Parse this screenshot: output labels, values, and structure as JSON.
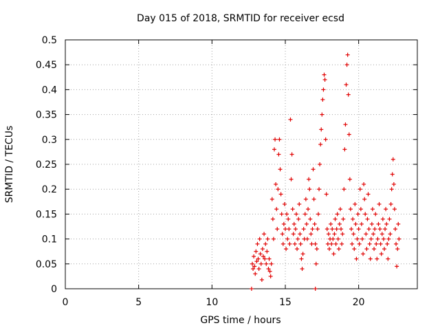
{
  "chart_data": {
    "type": "scatter",
    "title": "Day 015 of 2018, SRMTID for receiver ecsd",
    "xlabel": "GPS time / hours",
    "ylabel": "SRMTID / TECUs",
    "xlim": [
      0,
      24
    ],
    "ylim": [
      0,
      0.5
    ],
    "xticks": [
      0,
      5,
      10,
      15,
      20
    ],
    "yticks": [
      0,
      0.05,
      0.1,
      0.15,
      0.2,
      0.25,
      0.3,
      0.35,
      0.4,
      0.45,
      0.5
    ],
    "grid": true,
    "marker": "+",
    "color": "#e00000",
    "series": [
      {
        "name": "SRMTID",
        "points": [
          [
            12.75,
            0.05
          ],
          [
            12.8,
            0.04
          ],
          [
            12.85,
            0.065
          ],
          [
            12.9,
            0.045
          ],
          [
            12.95,
            0.03
          ],
          [
            13.0,
            0.075
          ],
          [
            13.05,
            0.055
          ],
          [
            13.1,
            0.09
          ],
          [
            13.15,
            0.06
          ],
          [
            13.2,
            0.04
          ],
          [
            13.25,
            0.1
          ],
          [
            13.3,
            0.07
          ],
          [
            13.35,
            0.05
          ],
          [
            13.4,
            0.018
          ],
          [
            13.45,
            0.08
          ],
          [
            13.5,
            0.065
          ],
          [
            13.55,
            0.11
          ],
          [
            13.6,
            0.06
          ],
          [
            13.65,
            0.09
          ],
          [
            13.7,
            0.05
          ],
          [
            13.75,
            0.075
          ],
          [
            13.8,
            0.1
          ],
          [
            13.85,
            0.04
          ],
          [
            13.9,
            0.06
          ],
          [
            13.95,
            0.035
          ],
          [
            14.0,
            0.025
          ],
          [
            14.05,
            0.05
          ],
          [
            14.1,
            0.18
          ],
          [
            14.15,
            0.14
          ],
          [
            14.2,
            0.1
          ],
          [
            14.25,
            0.28
          ],
          [
            14.3,
            0.3
          ],
          [
            14.35,
            0.21
          ],
          [
            14.4,
            0.16
          ],
          [
            14.45,
            0.12
          ],
          [
            14.5,
            0.2
          ],
          [
            14.55,
            0.27
          ],
          [
            14.6,
            0.3
          ],
          [
            14.65,
            0.24
          ],
          [
            14.7,
            0.19
          ],
          [
            14.75,
            0.15
          ],
          [
            14.8,
            0.11
          ],
          [
            14.85,
            0.09
          ],
          [
            14.9,
            0.13
          ],
          [
            14.95,
            0.17
          ],
          [
            15.0,
            0.12
          ],
          [
            15.05,
            0.08
          ],
          [
            15.1,
            0.15
          ],
          [
            15.15,
            0.1
          ],
          [
            15.2,
            0.14
          ],
          [
            15.25,
            0.12
          ],
          [
            15.3,
            0.09
          ],
          [
            15.35,
            0.34
          ],
          [
            15.4,
            0.22
          ],
          [
            15.45,
            0.27
          ],
          [
            15.5,
            0.16
          ],
          [
            15.55,
            0.11
          ],
          [
            15.6,
            0.13
          ],
          [
            15.65,
            0.09
          ],
          [
            15.7,
            0.12
          ],
          [
            15.75,
            0.15
          ],
          [
            15.8,
            0.08
          ],
          [
            15.85,
            0.1
          ],
          [
            15.9,
            0.14
          ],
          [
            15.95,
            0.17
          ],
          [
            16.0,
            0.11
          ],
          [
            16.05,
            0.09
          ],
          [
            16.1,
            0.06
          ],
          [
            16.15,
            0.04
          ],
          [
            16.2,
            0.07
          ],
          [
            16.25,
            0.12
          ],
          [
            16.3,
            0.1
          ],
          [
            16.35,
            0.15
          ],
          [
            16.4,
            0.18
          ],
          [
            16.45,
            0.13
          ],
          [
            16.5,
            0.1
          ],
          [
            16.55,
            0.16
          ],
          [
            16.6,
            0.22
          ],
          [
            16.65,
            0.2
          ],
          [
            16.7,
            0.14
          ],
          [
            16.75,
            0.11
          ],
          [
            16.8,
            0.09
          ],
          [
            16.85,
            0.12
          ],
          [
            16.9,
            0.24
          ],
          [
            16.95,
            0.18
          ],
          [
            17.0,
            0.13
          ],
          [
            17.05,
            0.09
          ],
          [
            17.1,
            0.05
          ],
          [
            17.15,
            0.08
          ],
          [
            17.2,
            0.12
          ],
          [
            17.25,
            0.15
          ],
          [
            17.3,
            0.2
          ],
          [
            17.35,
            0.25
          ],
          [
            17.4,
            0.29
          ],
          [
            17.45,
            0.32
          ],
          [
            17.5,
            0.35
          ],
          [
            17.55,
            0.38
          ],
          [
            17.6,
            0.4
          ],
          [
            17.65,
            0.43
          ],
          [
            17.7,
            0.42
          ],
          [
            17.75,
            0.3
          ],
          [
            17.8,
            0.19
          ],
          [
            17.85,
            0.12
          ],
          [
            17.9,
            0.09
          ],
          [
            17.95,
            0.11
          ],
          [
            18.0,
            0.08
          ],
          [
            18.05,
            0.1
          ],
          [
            18.1,
            0.13
          ],
          [
            18.15,
            0.09
          ],
          [
            18.2,
            0.12
          ],
          [
            18.25,
            0.1
          ],
          [
            18.3,
            0.07
          ],
          [
            18.35,
            0.11
          ],
          [
            18.4,
            0.14
          ],
          [
            18.45,
            0.09
          ],
          [
            18.5,
            0.12
          ],
          [
            18.55,
            0.15
          ],
          [
            18.6,
            0.1
          ],
          [
            18.65,
            0.08
          ],
          [
            18.7,
            0.13
          ],
          [
            18.75,
            0.16
          ],
          [
            18.8,
            0.12
          ],
          [
            18.85,
            0.09
          ],
          [
            18.9,
            0.11
          ],
          [
            18.95,
            0.14
          ],
          [
            19.0,
            0.2
          ],
          [
            19.05,
            0.28
          ],
          [
            19.1,
            0.33
          ],
          [
            19.15,
            0.41
          ],
          [
            19.2,
            0.45
          ],
          [
            19.25,
            0.47
          ],
          [
            19.3,
            0.39
          ],
          [
            19.35,
            0.31
          ],
          [
            19.4,
            0.22
          ],
          [
            19.45,
            0.16
          ],
          [
            19.5,
            0.12
          ],
          [
            19.55,
            0.09
          ],
          [
            19.6,
            0.14
          ],
          [
            19.65,
            0.11
          ],
          [
            19.7,
            0.08
          ],
          [
            19.75,
            0.17
          ],
          [
            19.8,
            0.13
          ],
          [
            19.85,
            0.06
          ],
          [
            19.9,
            0.1
          ],
          [
            19.95,
            0.15
          ],
          [
            20.0,
            0.12
          ],
          [
            20.05,
            0.09
          ],
          [
            20.1,
            0.2
          ],
          [
            20.15,
            0.16
          ],
          [
            20.2,
            0.13
          ],
          [
            20.25,
            0.1
          ],
          [
            20.3,
            0.07
          ],
          [
            20.35,
            0.21
          ],
          [
            20.4,
            0.18
          ],
          [
            20.45,
            0.15
          ],
          [
            20.5,
            0.11
          ],
          [
            20.55,
            0.08
          ],
          [
            20.6,
            0.14
          ],
          [
            20.65,
            0.19
          ],
          [
            20.7,
            0.12
          ],
          [
            20.75,
            0.09
          ],
          [
            20.8,
            0.06
          ],
          [
            20.85,
            0.1
          ],
          [
            20.9,
            0.13
          ],
          [
            20.95,
            0.16
          ],
          [
            21.0,
            0.11
          ],
          [
            21.05,
            0.08
          ],
          [
            21.1,
            0.12
          ],
          [
            21.15,
            0.15
          ],
          [
            21.2,
            0.09
          ],
          [
            21.25,
            0.06
          ],
          [
            21.3,
            0.1
          ],
          [
            21.35,
            0.13
          ],
          [
            21.4,
            0.17
          ],
          [
            21.45,
            0.12
          ],
          [
            21.5,
            0.09
          ],
          [
            21.55,
            0.07
          ],
          [
            21.6,
            0.11
          ],
          [
            21.65,
            0.14
          ],
          [
            21.7,
            0.1
          ],
          [
            21.75,
            0.08
          ],
          [
            21.8,
            0.12
          ],
          [
            21.85,
            0.16
          ],
          [
            21.9,
            0.13
          ],
          [
            21.95,
            0.09
          ],
          [
            22.0,
            0.06
          ],
          [
            22.05,
            0.1
          ],
          [
            22.1,
            0.14
          ],
          [
            22.15,
            0.11
          ],
          [
            22.2,
            0.17
          ],
          [
            22.25,
            0.2
          ],
          [
            22.3,
            0.23
          ],
          [
            22.35,
            0.26
          ],
          [
            22.4,
            0.21
          ],
          [
            22.45,
            0.16
          ],
          [
            22.5,
            0.12
          ],
          [
            22.55,
            0.09
          ],
          [
            22.6,
            0.045
          ],
          [
            22.65,
            0.08
          ],
          [
            22.7,
            0.13
          ],
          [
            22.75,
            0.1
          ],
          [
            12.7,
            0.0
          ],
          [
            17.05,
            0.0
          ]
        ]
      }
    ]
  }
}
